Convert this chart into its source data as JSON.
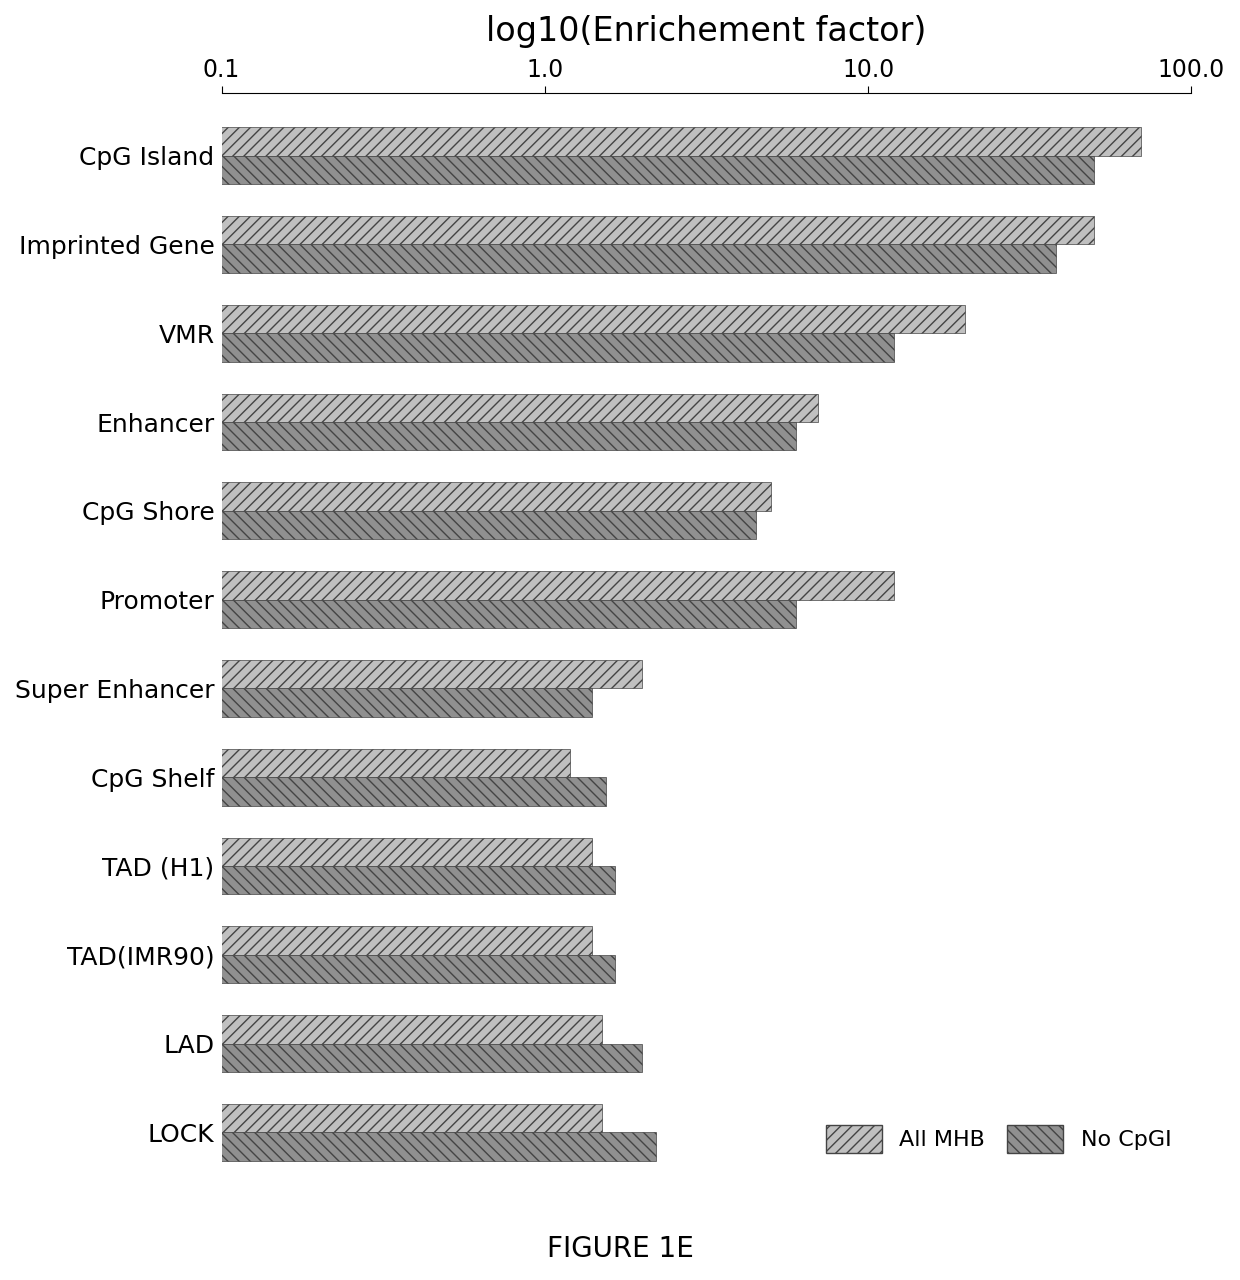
{
  "title": "log10(Enrichement factor)",
  "figure_label": "FIGURE 1E",
  "categories": [
    "CpG Island",
    "Imprinted Gene",
    "VMR",
    "Enhancer",
    "CpG Shore",
    "Promoter",
    "Super Enhancer",
    "CpG Shelf",
    "TAD (H1)",
    "TAD(IMR90)",
    "LAD",
    "LOCK"
  ],
  "all_mhb": [
    70.0,
    50.0,
    20.0,
    7.0,
    5.0,
    12.0,
    2.0,
    1.2,
    1.4,
    1.4,
    1.5,
    1.5
  ],
  "no_cpgi": [
    50.0,
    38.0,
    12.0,
    6.0,
    4.5,
    6.0,
    1.4,
    1.55,
    1.65,
    1.65,
    2.0,
    2.2
  ],
  "xmin": 0.1,
  "xmax": 100.0,
  "xticks": [
    0.1,
    1.0,
    10.0,
    100.0
  ],
  "xtick_labels": [
    "0.1",
    "1.0",
    "10.0",
    "100.0"
  ],
  "legend_labels": [
    "All MHB",
    "No CpGI"
  ],
  "bar_height": 0.32,
  "color_all_mhb": "#c0c0c0",
  "color_no_cpgi": "#909090",
  "background_color": "#ffffff",
  "title_fontsize": 24,
  "label_fontsize": 18,
  "tick_fontsize": 17,
  "legend_fontsize": 16,
  "figwidth": 12.4,
  "figheight": 12.8
}
